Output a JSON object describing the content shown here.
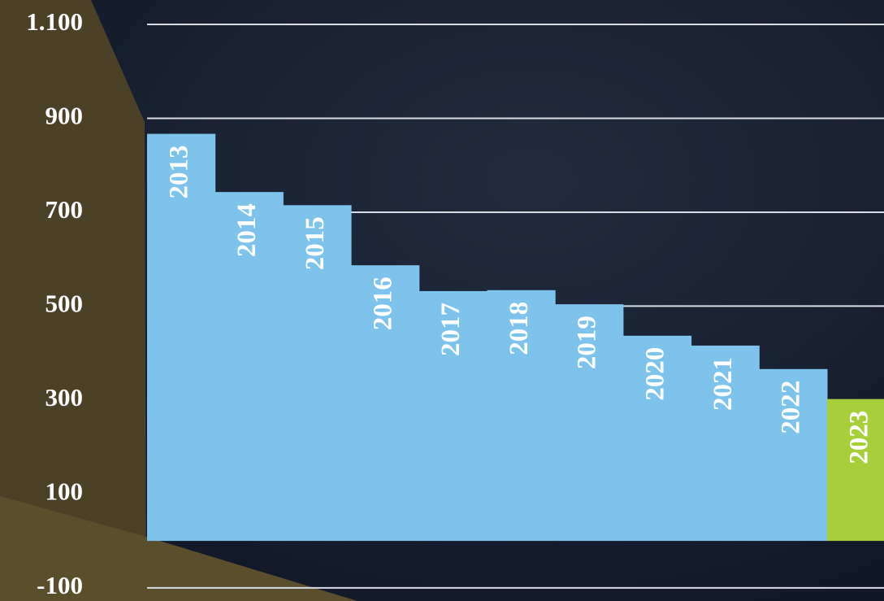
{
  "chart_data": {
    "type": "bar",
    "categories": [
      "2013",
      "2014",
      "2015",
      "2016",
      "2017",
      "2018",
      "2019",
      "2020",
      "2021",
      "2022",
      "2023"
    ],
    "values": [
      867,
      743,
      715,
      587,
      532,
      534,
      504,
      437,
      416,
      366,
      302
    ],
    "colors": [
      "#7dc3ec",
      "#7dc3ec",
      "#7dc3ec",
      "#7dc3ec",
      "#7dc3ec",
      "#7dc3ec",
      "#7dc3ec",
      "#7dc3ec",
      "#7dc3ec",
      "#7dc3ec",
      "#a6cf3a"
    ],
    "ylim": [
      -128,
      1152
    ],
    "yticks": [
      -100,
      100,
      300,
      500,
      700,
      900,
      {
        "value": 1100,
        "label": "1.100"
      }
    ],
    "grid": true
  }
}
